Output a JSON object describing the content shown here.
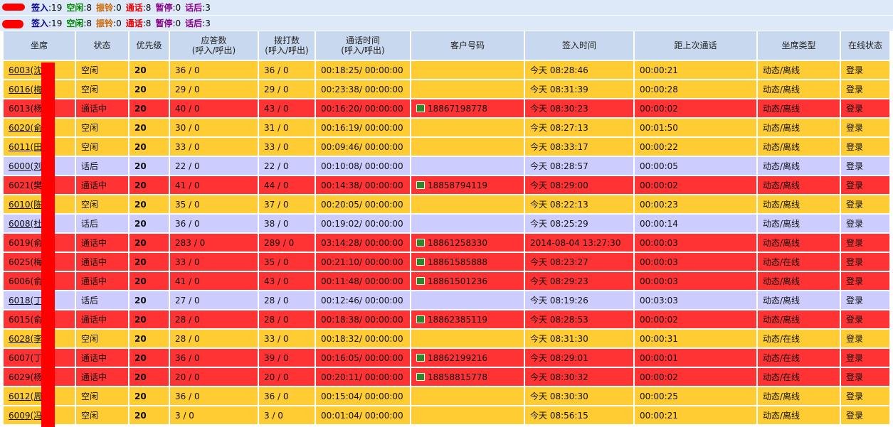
{
  "status_bar": {
    "lines": [
      {
        "items": [
          {
            "label": "签入",
            "value": ":19",
            "color": "#000099"
          },
          {
            "label": "空闲",
            "value": ":8",
            "color": "#008800"
          },
          {
            "label": "振铃",
            "value": ":0",
            "color": "#cc6600"
          },
          {
            "label": "通话",
            "value": ":8",
            "color": "#ee0000"
          },
          {
            "label": "暂停",
            "value": ":0",
            "color": "#880088"
          },
          {
            "label": "话后",
            "value": ":3",
            "color": "#880088"
          }
        ]
      },
      {
        "items": [
          {
            "label": "签入",
            "value": ":19",
            "color": "#000099"
          },
          {
            "label": "空闲",
            "value": ":8",
            "color": "#008800"
          },
          {
            "label": "振铃",
            "value": ":0",
            "color": "#cc6600"
          },
          {
            "label": "通话",
            "value": ":8",
            "color": "#ee0000"
          },
          {
            "label": "暂停",
            "value": ":0",
            "color": "#880088"
          },
          {
            "label": "话后",
            "value": ":3",
            "color": "#880088"
          }
        ]
      }
    ]
  },
  "table": {
    "header": [
      [
        "坐席"
      ],
      [
        "状态"
      ],
      [
        "优先级"
      ],
      [
        "应答数",
        "(呼入/呼出)"
      ],
      [
        "拨打数",
        "(呼入/呼出)"
      ],
      [
        "通话时间",
        "(呼入/呼出)"
      ],
      [
        "客户号码"
      ],
      [
        "签入时间"
      ],
      [
        "距上次通话"
      ],
      [
        "坐席类型"
      ],
      [
        "在线状态"
      ]
    ],
    "rows": [
      {
        "color": "#ffcc33",
        "underlined": true,
        "cells": [
          "6003(沈",
          "空闲",
          "20",
          "36 / 0",
          "36 / 0",
          "00:18:25/ 00:00:00",
          null,
          "今天 08:28:46",
          "00:00:21",
          "动态/离线",
          "登录"
        ]
      },
      {
        "color": "#ffcc33",
        "underlined": true,
        "cells": [
          "6016(梅",
          "空闲",
          "20",
          "29 / 0",
          "29 / 0",
          "00:23:38/ 00:00:00",
          null,
          "今天 08:31:39",
          "00:00:28",
          "动态/离线",
          "登录"
        ]
      },
      {
        "color": "#ff3333",
        "underlined": false,
        "cells": [
          "6013(杨",
          "通话中",
          "20",
          "40 / 0",
          "43 / 0",
          "00:16:20/ 00:00:00",
          "18867198778",
          "今天 08:30:23",
          "00:00:02",
          "动态/离线",
          "登录"
        ]
      },
      {
        "color": "#ffcc33",
        "underlined": true,
        "cells": [
          "6020(俞",
          "空闲",
          "20",
          "30 / 0",
          "31 / 0",
          "00:16:19/ 00:00:00",
          null,
          "今天 08:27:13",
          "00:01:50",
          "动态/离线",
          "登录"
        ]
      },
      {
        "color": "#ffcc33",
        "underlined": true,
        "cells": [
          "6011(田",
          "空闲",
          "20",
          "33 / 0",
          "33 / 0",
          "00:09:46/ 00:00:00",
          null,
          "今天 08:33:17",
          "00:00:22",
          "动态/离线",
          "登录"
        ]
      },
      {
        "color": "#ccccff",
        "underlined": true,
        "cells": [
          "6000(刘",
          "话后",
          "20",
          "22 / 0",
          "22 / 0",
          "00:10:08/ 00:00:00",
          null,
          "今天 08:28:57",
          "00:00:05",
          "动态/离线",
          "登录"
        ]
      },
      {
        "color": "#ff3333",
        "underlined": false,
        "cells": [
          "6021(樊",
          "通话中",
          "20",
          "41 / 0",
          "44 / 0",
          "00:14:38/ 00:00:00",
          "18858794119",
          "今天 08:29:00",
          "00:00:02",
          "动态/离线",
          "登录"
        ]
      },
      {
        "color": "#ffcc33",
        "underlined": true,
        "cells": [
          "6010(陈",
          "空闲",
          "20",
          "35 / 0",
          "37 / 0",
          "00:20:05/ 00:00:00",
          null,
          "今天 08:22:13",
          "00:00:23",
          "动态/离线",
          "登录"
        ]
      },
      {
        "color": "#ccccff",
        "underlined": true,
        "cells": [
          "6008(杜",
          "话后",
          "20",
          "36 / 0",
          "38 / 0",
          "00:19:02/ 00:00:00",
          null,
          "今天 08:25:29",
          "00:00:14",
          "动态/离线",
          "登录"
        ]
      },
      {
        "color": "#ff3333",
        "underlined": false,
        "cells": [
          "6019(俞",
          "通话中",
          "20",
          "283 / 0",
          "289 / 0",
          "03:14:28/ 00:00:00",
          "18861258330",
          "2014-08-04 13:27:30",
          "00:00:03",
          "动态/离线",
          "登录"
        ]
      },
      {
        "color": "#ff3333",
        "underlined": false,
        "cells": [
          "6025(梅",
          "通话中",
          "20",
          "33 / 0",
          "35 / 0",
          "00:21:10/ 00:00:00",
          "18861585888",
          "今天 08:23:27",
          "00:00:03",
          "动态/在线",
          "登录"
        ]
      },
      {
        "color": "#ff3333",
        "underlined": false,
        "cells": [
          "6006(俞",
          "通话中",
          "20",
          "41 / 0",
          "43 / 0",
          "00:11:48/ 00:00:00",
          "18861501236",
          "今天 08:29:23",
          "00:00:03",
          "动态/离线",
          "登录"
        ]
      },
      {
        "color": "#ccccff",
        "underlined": true,
        "cells": [
          "6018(丁",
          "话后",
          "20",
          "27 / 0",
          "28 / 0",
          "00:12:46/ 00:00:00",
          null,
          "今天 08:19:26",
          "00:03:03",
          "动态/离线",
          "登录"
        ]
      },
      {
        "color": "#ff3333",
        "underlined": false,
        "cells": [
          "6015(俞",
          "通话中",
          "20",
          "28 / 0",
          "28 / 0",
          "00:18:38/ 00:00:00",
          "18862385119",
          "今天 08:28:53",
          "00:00:02",
          "动态/离线",
          "登录"
        ]
      },
      {
        "color": "#ffcc33",
        "underlined": true,
        "cells": [
          "6028(李",
          "空闲",
          "20",
          "28 / 0",
          "33 / 0",
          "00:18:32/ 00:00:00",
          null,
          "今天 08:31:30",
          "00:00:31",
          "动态/在线",
          "登录"
        ]
      },
      {
        "color": "#ff3333",
        "underlined": false,
        "cells": [
          "6007(丁",
          "通话中",
          "20",
          "36 / 0",
          "39 / 0",
          "00:16:05/ 00:00:00",
          "18862199216",
          "今天 08:29:01",
          "00:00:01",
          "动态/在线",
          "登录"
        ]
      },
      {
        "color": "#ff3333",
        "underlined": false,
        "cells": [
          "6029(杨",
          "通话中",
          "20",
          "20 / 0",
          "20 / 0",
          "00:20:11/ 00:00:00",
          "18858815778",
          "今天 08:30:32",
          "00:00:02",
          "动态/在线",
          "登录"
        ]
      },
      {
        "color": "#ffcc33",
        "underlined": true,
        "cells": [
          "6012(周",
          "空闲",
          "20",
          "36 / 0",
          "36 / 0",
          "00:15:04/ 00:00:00",
          null,
          "今天 08:30:30",
          "00:00:25",
          "动态/离线",
          "登录"
        ]
      },
      {
        "color": "#ffcc33",
        "underlined": true,
        "cells": [
          "6009(冯",
          "空闲",
          "20",
          "3 / 0",
          "3 / 0",
          "00:01:04/ 00:00:00",
          null,
          "今天 08:56:15",
          "00:00:21",
          "动态/离线",
          "登录"
        ]
      }
    ]
  }
}
